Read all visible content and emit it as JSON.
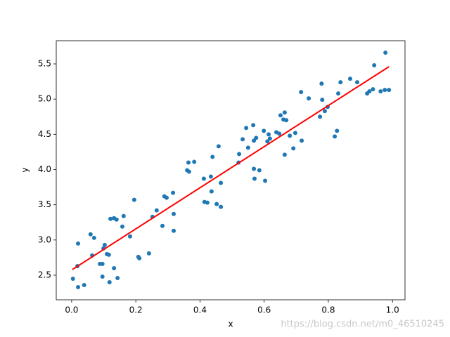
{
  "chart_data": {
    "type": "scatter",
    "xlabel": "x",
    "ylabel": "y",
    "watermark": "https://blog.csdn.net/m0_46510245",
    "xlim": [
      -0.048,
      1.039
    ],
    "ylim": [
      2.151,
      5.829
    ],
    "xticks": [
      {
        "value": 0,
        "label": "0.0"
      },
      0.2,
      0.4,
      0.6,
      0.8,
      {
        "value": 1,
        "label": "1.0"
      }
    ],
    "yticks": [
      2.5,
      {
        "value": 3,
        "label": "3.0"
      },
      3.5,
      {
        "value": 4,
        "label": "4.0"
      },
      4.5,
      {
        "value": 5,
        "label": "5.0"
      },
      5.5
    ],
    "series": [
      {
        "type": "scatter",
        "color": "#1f77b4",
        "x": [
          0.004,
          0.018,
          0.02,
          0.02,
          0.039,
          0.059,
          0.064,
          0.07,
          0.088,
          0.096,
          0.096,
          0.099,
          0.103,
          0.11,
          0.116,
          0.118,
          0.121,
          0.132,
          0.132,
          0.14,
          0.143,
          0.158,
          0.162,
          0.182,
          0.195,
          0.208,
          0.211,
          0.241,
          0.252,
          0.265,
          0.283,
          0.289,
          0.296,
          0.316,
          0.318,
          0.318,
          0.36,
          0.366,
          0.364,
          0.382,
          0.412,
          0.414,
          0.423,
          0.434,
          0.436,
          0.439,
          0.452,
          0.458,
          0.465,
          0.465,
          0.52,
          0.522,
          0.533,
          0.544,
          0.55,
          0.566,
          0.568,
          0.568,
          0.57,
          0.575,
          0.585,
          0.599,
          0.603,
          0.61,
          0.614,
          0.618,
          0.638,
          0.647,
          0.651,
          0.66,
          0.664,
          0.664,
          0.669,
          0.68,
          0.691,
          0.697,
          0.715,
          0.717,
          0.739,
          0.774,
          0.779,
          0.781,
          0.789,
          0.798,
          0.82,
          0.827,
          0.831,
          0.838,
          0.868,
          0.89,
          0.921,
          0.928,
          0.939,
          0.943,
          0.963,
          0.976,
          0.978,
          0.989
        ],
        "values": [
          2.45,
          2.63,
          2.95,
          2.33,
          2.36,
          3.08,
          2.78,
          3.03,
          2.66,
          2.66,
          2.48,
          2.88,
          2.93,
          2.8,
          2.79,
          2.4,
          3.3,
          3.31,
          2.6,
          3.29,
          2.46,
          3.19,
          3.34,
          3.05,
          3.57,
          2.76,
          2.74,
          2.81,
          3.33,
          3.42,
          3.2,
          3.62,
          3.6,
          3.67,
          3.37,
          3.13,
          3.99,
          3.97,
          4.1,
          4.11,
          3.87,
          3.54,
          3.53,
          3.9,
          3.69,
          4.18,
          3.51,
          4.33,
          3.47,
          3.81,
          4.1,
          4.22,
          4.43,
          4.59,
          4.31,
          4.63,
          4.41,
          4.01,
          3.87,
          4.45,
          3.99,
          4.55,
          3.84,
          4.4,
          4.5,
          4.44,
          4.53,
          4.51,
          4.77,
          4.71,
          4.81,
          4.21,
          4.7,
          4.48,
          4.3,
          4.52,
          5.1,
          4.41,
          5.01,
          4.75,
          5.22,
          4.99,
          4.83,
          4.89,
          4.47,
          4.55,
          5.08,
          5.24,
          5.29,
          5.24,
          5.08,
          5.11,
          5.14,
          5.48,
          5.11,
          5.13,
          5.66,
          5.13
        ]
      },
      {
        "type": "line",
        "color": "#ff0000",
        "x": [
          0.002,
          0.989
        ],
        "values": [
          2.58,
          5.46
        ]
      }
    ]
  }
}
